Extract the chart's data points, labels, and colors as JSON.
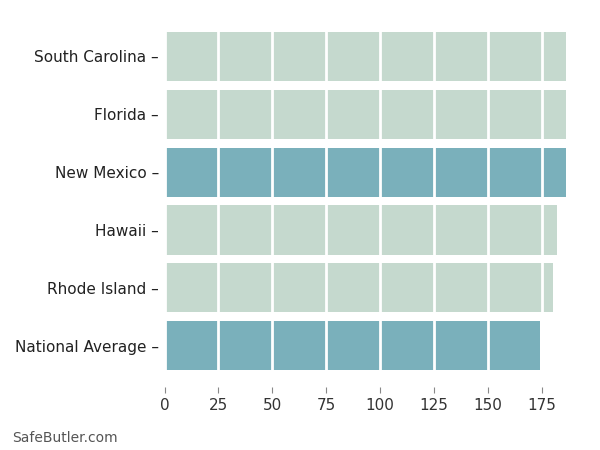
{
  "categories": [
    "South Carolina",
    "Florida",
    "New Mexico",
    "Hawaii",
    "Rhode Island",
    "National Average"
  ],
  "values": [
    186,
    186,
    186,
    182,
    180,
    174
  ],
  "bar_colors": [
    "#c5d9ce",
    "#c5d9ce",
    "#7ab0bb",
    "#c5d9ce",
    "#c5d9ce",
    "#7ab0bb"
  ],
  "xlim": [
    0,
    195
  ],
  "xticks": [
    0,
    25,
    50,
    75,
    100,
    125,
    150,
    175
  ],
  "background_color": "#ffffff",
  "axes_bg_color": "#ffffff",
  "grid_color": "#ffffff",
  "bar_height": 0.85,
  "footer_text": "SafeButler.com",
  "footer_fontsize": 10,
  "tick_label_fontsize": 11,
  "ytick_fontsize": 11
}
